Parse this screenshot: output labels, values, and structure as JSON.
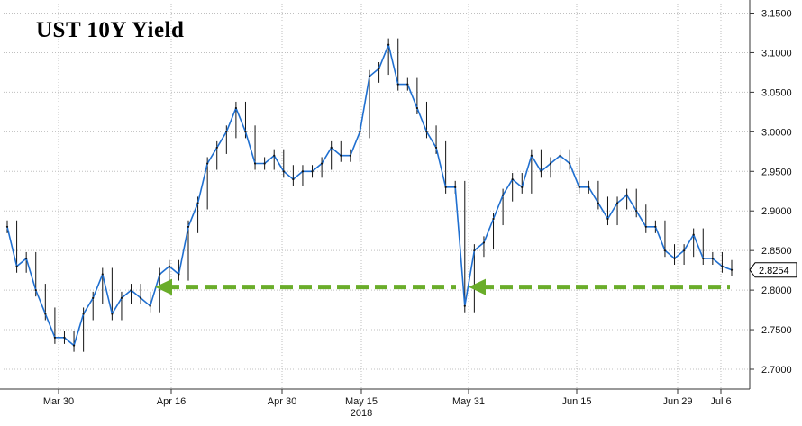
{
  "chart_data": {
    "type": "line",
    "title": "UST 10Y Yield",
    "xlabel": "",
    "ylabel": "",
    "year_label": "2018",
    "x_ticks": [
      "Mar 30",
      "Apr 16",
      "Apr 30",
      "May 15",
      "May 31",
      "Jun 15",
      "Jun 29",
      "Jul 6"
    ],
    "y_ticks": [
      "2.7000",
      "2.7500",
      "2.8000",
      "2.8500",
      "2.9000",
      "2.9500",
      "3.0000",
      "3.0500",
      "3.1000",
      "3.1500"
    ],
    "ylim": [
      2.685,
      3.162
    ],
    "last_value_label": "2.8254",
    "last_value": 2.8254,
    "grid": true,
    "line_color": "#1f6fd0",
    "candle_color": "#111111",
    "arrow_color": "#6aad2a",
    "support_level": 2.804,
    "x": [
      "Mar 22",
      "Mar 23",
      "Mar 26",
      "Mar 27",
      "Mar 28",
      "Mar 29",
      "Mar 30",
      "Apr 2",
      "Apr 3",
      "Apr 4",
      "Apr 5",
      "Apr 6",
      "Apr 9",
      "Apr 10",
      "Apr 11",
      "Apr 12",
      "Apr 13",
      "Apr 16",
      "Apr 17",
      "Apr 18",
      "Apr 19",
      "Apr 20",
      "Apr 23",
      "Apr 24",
      "Apr 25",
      "Apr 26",
      "Apr 27",
      "Apr 30",
      "May 1",
      "May 2",
      "May 3",
      "May 4",
      "May 7",
      "May 8",
      "May 9",
      "May 10",
      "May 11",
      "May 14",
      "May 15",
      "May 16",
      "May 17",
      "May 18",
      "May 21",
      "May 22",
      "May 23",
      "May 24",
      "May 25",
      "May 28",
      "May 29",
      "May 30",
      "May 31",
      "Jun 1",
      "Jun 4",
      "Jun 5",
      "Jun 6",
      "Jun 7",
      "Jun 8",
      "Jun 11",
      "Jun 12",
      "Jun 13",
      "Jun 14",
      "Jun 15",
      "Jun 18",
      "Jun 19",
      "Jun 20",
      "Jun 21",
      "Jun 22",
      "Jun 25",
      "Jun 26",
      "Jun 27",
      "Jun 28",
      "Jun 29",
      "Jul 2",
      "Jul 3",
      "Jul 4",
      "Jul 5",
      "Jul 6"
    ],
    "values": [
      2.88,
      2.83,
      2.84,
      2.8,
      2.77,
      2.74,
      2.74,
      2.73,
      2.77,
      2.79,
      2.82,
      2.77,
      2.79,
      2.8,
      2.79,
      2.78,
      2.82,
      2.83,
      2.82,
      2.88,
      2.91,
      2.96,
      2.98,
      3.0,
      3.03,
      3.0,
      2.96,
      2.96,
      2.97,
      2.95,
      2.94,
      2.95,
      2.95,
      2.96,
      2.98,
      2.97,
      2.97,
      3.0,
      3.07,
      3.08,
      3.11,
      3.06,
      3.06,
      3.03,
      3.0,
      2.98,
      2.93,
      2.93,
      2.78,
      2.85,
      2.86,
      2.89,
      2.92,
      2.94,
      2.93,
      2.97,
      2.95,
      2.96,
      2.97,
      2.96,
      2.93,
      2.93,
      2.91,
      2.89,
      2.91,
      2.92,
      2.9,
      2.88,
      2.88,
      2.85,
      2.84,
      2.85,
      2.87,
      2.84,
      2.84,
      2.83,
      2.8254
    ]
  }
}
